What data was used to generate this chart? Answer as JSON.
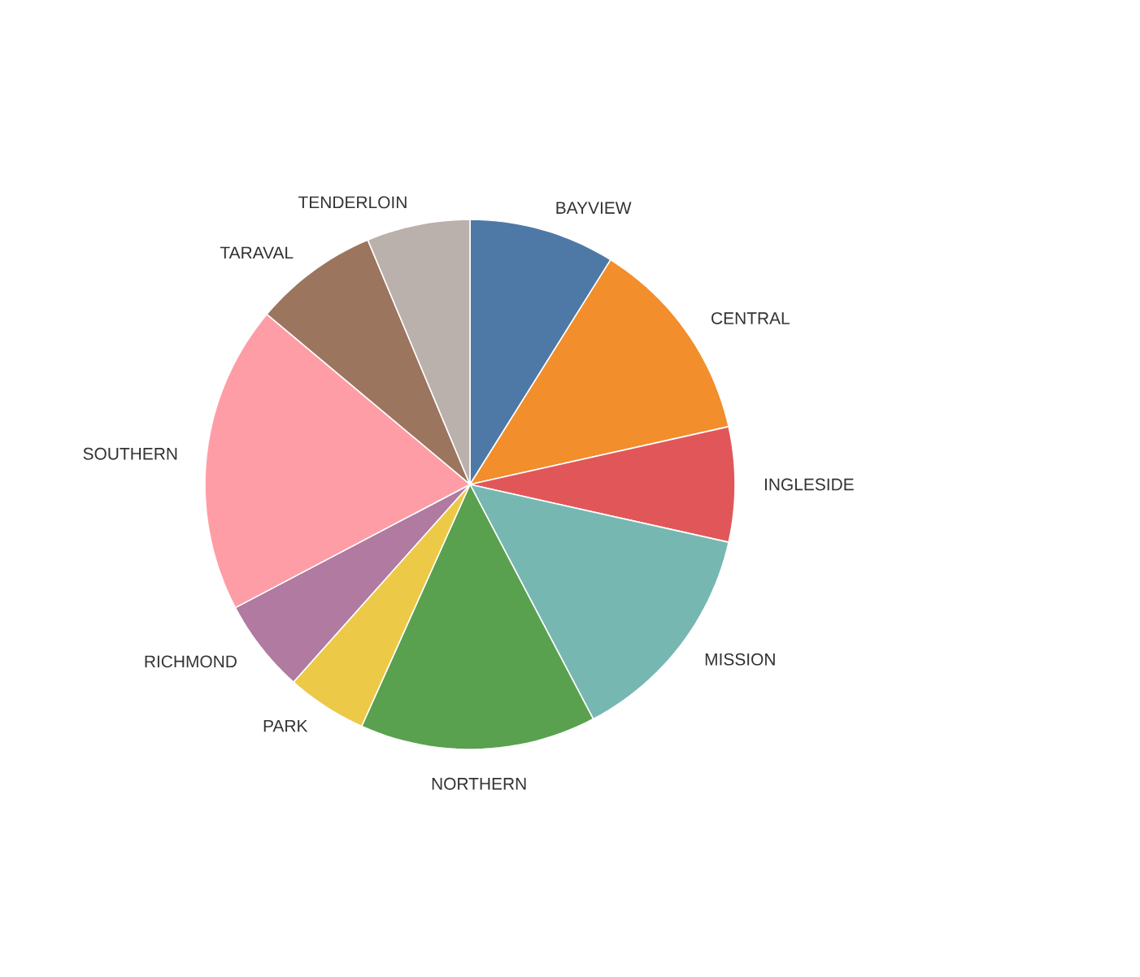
{
  "chart_data": {
    "type": "pie",
    "categories": [
      "BAYVIEW",
      "CENTRAL",
      "INGLESIDE",
      "MISSION",
      "NORTHERN",
      "PARK",
      "RICHMOND",
      "SOUTHERN",
      "TARAVAL",
      "TENDERLOIN"
    ],
    "values": [
      8.9,
      12.6,
      7.0,
      13.8,
      14.4,
      4.9,
      5.7,
      18.8,
      7.6,
      6.3
    ],
    "colors": [
      "#4e79a7",
      "#f28e2b",
      "#e15759",
      "#76b7b2",
      "#59a14f",
      "#edc948",
      "#b07aa1",
      "#ff9da7",
      "#9c755f",
      "#bab0ac"
    ]
  }
}
